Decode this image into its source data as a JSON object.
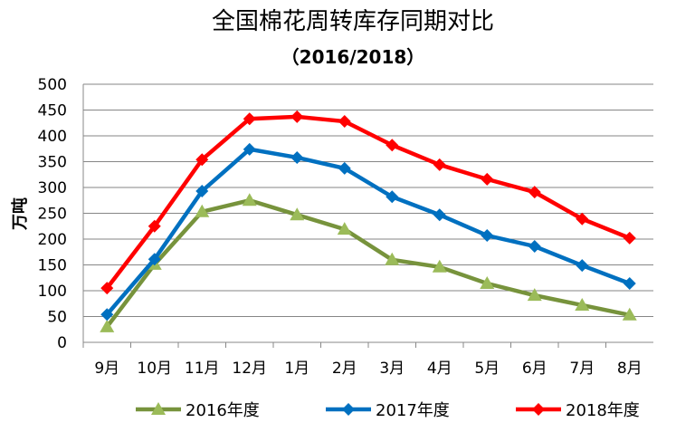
{
  "chart_data": {
    "type": "line",
    "title": "全国棉花周转库存同期对比",
    "subtitle": "（2016/2018）",
    "ylabel": "万吨",
    "xlabel": "",
    "ylim": [
      0,
      500
    ],
    "yticks": [
      "0",
      "50",
      "100",
      "150",
      "200",
      "250",
      "300",
      "350",
      "400",
      "450",
      "500"
    ],
    "grid": true,
    "legend": "bottom",
    "categories": [
      "9月",
      "10月",
      "11月",
      "12月",
      "1月",
      "2月",
      "3月",
      "4月",
      "5月",
      "6月",
      "7月",
      "8月"
    ],
    "series": [
      {
        "name": "2016年度",
        "color": "#77933C",
        "marker": "triangle",
        "values": [
          30,
          151,
          253,
          275,
          247,
          219,
          160,
          146,
          114,
          91,
          72,
          53
        ]
      },
      {
        "name": "2017年度",
        "color": "#0070C0",
        "marker": "diamond",
        "values": [
          54,
          161,
          293,
          374,
          358,
          337,
          282,
          247,
          207,
          186,
          149,
          114
        ]
      },
      {
        "name": "2018年度",
        "color": "#FF0000",
        "marker": "diamond",
        "values": [
          105,
          225,
          354,
          433,
          437,
          428,
          382,
          344,
          316,
          291,
          239,
          202
        ]
      }
    ]
  }
}
